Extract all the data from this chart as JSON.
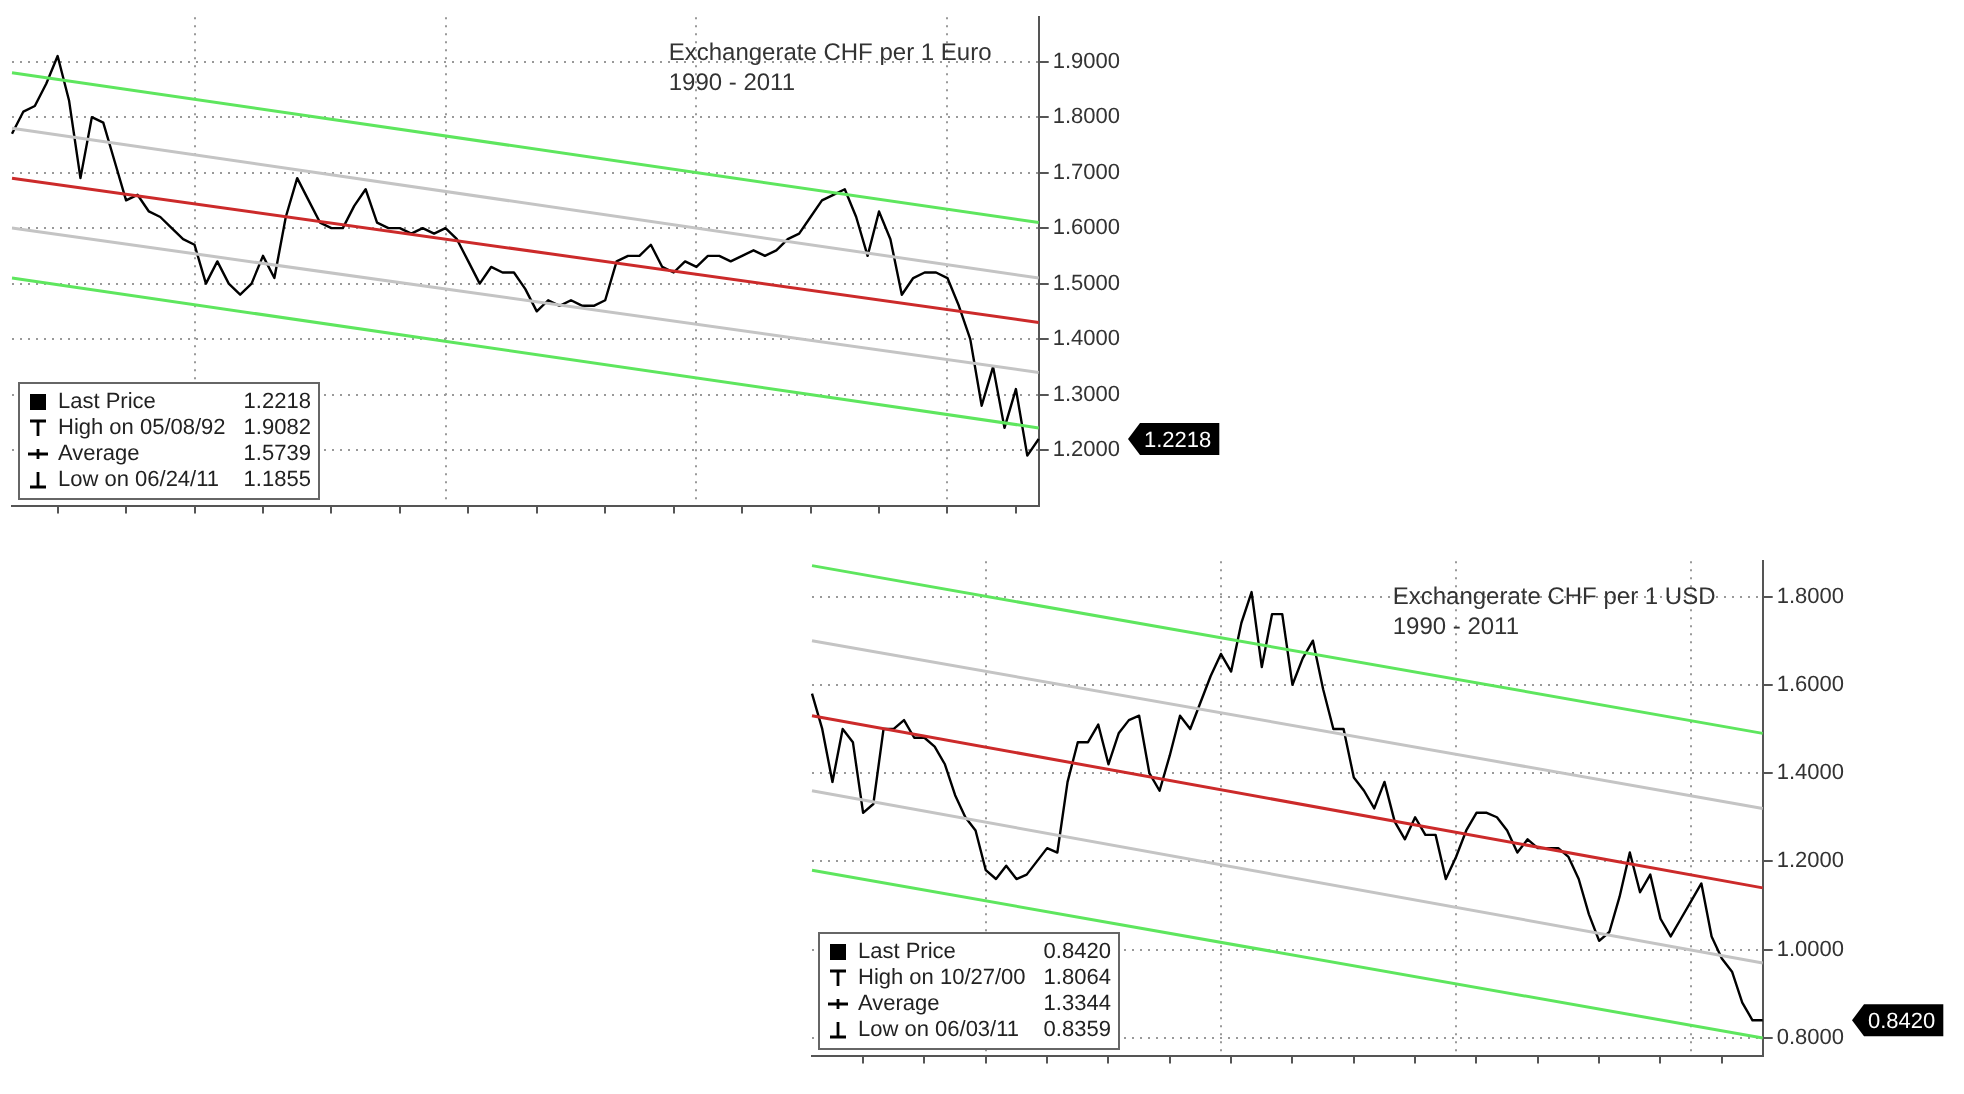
{
  "chart_data": [
    {
      "type": "line",
      "title": "Exchangerate CHF per 1 Euro",
      "subtitle": "1990 - 2011",
      "categories": [
        null,
        null,
        null,
        null,
        null,
        null,
        null,
        null,
        null,
        null,
        null,
        null,
        null,
        null,
        null,
        null,
        null,
        null,
        null,
        null,
        null,
        null,
        null,
        null,
        null,
        null,
        null,
        null,
        null,
        null,
        null,
        null,
        null,
        null,
        null,
        null,
        null,
        null,
        null,
        null,
        null,
        null,
        null,
        null,
        null,
        null,
        null,
        null,
        null,
        null,
        null,
        null,
        null,
        null,
        null,
        null,
        null,
        null,
        null,
        null,
        null,
        null,
        null,
        null,
        null,
        null,
        null,
        null,
        null,
        null,
        null,
        null,
        null,
        null,
        null,
        null,
        null,
        null,
        null,
        null,
        null,
        null,
        null,
        null,
        null,
        null,
        null,
        null,
        null,
        null,
        null
      ],
      "series": [
        {
          "type": "line",
          "color": "#000000",
          "values": [
            1.77,
            1.81,
            1.82,
            1.86,
            1.91,
            1.83,
            1.69,
            1.8,
            1.79,
            1.72,
            1.65,
            1.66,
            1.63,
            1.62,
            1.6,
            1.58,
            1.57,
            1.5,
            1.54,
            1.5,
            1.48,
            1.5,
            1.55,
            1.51,
            1.62,
            1.69,
            1.65,
            1.61,
            1.6,
            1.6,
            1.64,
            1.67,
            1.61,
            1.6,
            1.6,
            1.59,
            1.6,
            1.59,
            1.6,
            1.58,
            1.54,
            1.5,
            1.53,
            1.52,
            1.52,
            1.49,
            1.45,
            1.47,
            1.46,
            1.47,
            1.46,
            1.46,
            1.47,
            1.54,
            1.55,
            1.55,
            1.57,
            1.53,
            1.52,
            1.54,
            1.53,
            1.55,
            1.55,
            1.54,
            1.55,
            1.56,
            1.55,
            1.56,
            1.58,
            1.59,
            1.62,
            1.65,
            1.66,
            1.67,
            1.62,
            1.55,
            1.63,
            1.58,
            1.48,
            1.51,
            1.52,
            1.52,
            1.51,
            1.46,
            1.4,
            1.28,
            1.35,
            1.24,
            1.31,
            1.19,
            1.22
          ]
        },
        {
          "type": "line",
          "color": "#5ee65e",
          "values": [
            1.88,
            null,
            null,
            null,
            null,
            null,
            null,
            null,
            null,
            null,
            null,
            null,
            null,
            null,
            null,
            null,
            null,
            null,
            null,
            null,
            null,
            null,
            null,
            null,
            null,
            null,
            null,
            null,
            null,
            null,
            null,
            null,
            null,
            null,
            null,
            null,
            null,
            null,
            null,
            null,
            null,
            null,
            null,
            null,
            null,
            null,
            null,
            null,
            null,
            null,
            null,
            null,
            null,
            null,
            null,
            null,
            null,
            null,
            null,
            null,
            null,
            null,
            null,
            null,
            null,
            null,
            null,
            null,
            null,
            null,
            null,
            null,
            null,
            null,
            null,
            null,
            null,
            null,
            null,
            null,
            null,
            null,
            null,
            null,
            null,
            null,
            null,
            null,
            null,
            null,
            1.61
          ]
        },
        {
          "type": "line",
          "color": "#c4c4c4",
          "values": [
            1.78,
            null,
            null,
            null,
            null,
            null,
            null,
            null,
            null,
            null,
            null,
            null,
            null,
            null,
            null,
            null,
            null,
            null,
            null,
            null,
            null,
            null,
            null,
            null,
            null,
            null,
            null,
            null,
            null,
            null,
            null,
            null,
            null,
            null,
            null,
            null,
            null,
            null,
            null,
            null,
            null,
            null,
            null,
            null,
            null,
            null,
            null,
            null,
            null,
            null,
            null,
            null,
            null,
            null,
            null,
            null,
            null,
            null,
            null,
            null,
            null,
            null,
            null,
            null,
            null,
            null,
            null,
            null,
            null,
            null,
            null,
            null,
            null,
            null,
            null,
            null,
            null,
            null,
            null,
            null,
            null,
            null,
            null,
            null,
            null,
            null,
            null,
            null,
            null,
            null,
            1.51
          ]
        },
        {
          "type": "line",
          "color": "#cc2a2a",
          "values": [
            1.69,
            null,
            null,
            null,
            null,
            null,
            null,
            null,
            null,
            null,
            null,
            null,
            null,
            null,
            null,
            null,
            null,
            null,
            null,
            null,
            null,
            null,
            null,
            null,
            null,
            null,
            null,
            null,
            null,
            null,
            null,
            null,
            null,
            null,
            null,
            null,
            null,
            null,
            null,
            null,
            null,
            null,
            null,
            null,
            null,
            null,
            null,
            null,
            null,
            null,
            null,
            null,
            null,
            null,
            null,
            null,
            null,
            null,
            null,
            null,
            null,
            null,
            null,
            null,
            null,
            null,
            null,
            null,
            null,
            null,
            null,
            null,
            null,
            null,
            null,
            null,
            null,
            null,
            null,
            null,
            null,
            null,
            null,
            null,
            null,
            null,
            null,
            null,
            null,
            null,
            1.43
          ]
        },
        {
          "type": "line",
          "color": "#c4c4c4",
          "values": [
            1.6,
            null,
            null,
            null,
            null,
            null,
            null,
            null,
            null,
            null,
            null,
            null,
            null,
            null,
            null,
            null,
            null,
            null,
            null,
            null,
            null,
            null,
            null,
            null,
            null,
            null,
            null,
            null,
            null,
            null,
            null,
            null,
            null,
            null,
            null,
            null,
            null,
            null,
            null,
            null,
            null,
            null,
            null,
            null,
            null,
            null,
            null,
            null,
            null,
            null,
            null,
            null,
            null,
            null,
            null,
            null,
            null,
            null,
            null,
            null,
            null,
            null,
            null,
            null,
            null,
            null,
            null,
            null,
            null,
            null,
            null,
            null,
            null,
            null,
            null,
            null,
            null,
            null,
            null,
            null,
            null,
            null,
            null,
            null,
            null,
            null,
            null,
            null,
            null,
            null,
            1.34
          ]
        },
        {
          "type": "line",
          "color": "#5ee65e",
          "values": [
            1.51,
            null,
            null,
            null,
            null,
            null,
            null,
            null,
            null,
            null,
            null,
            null,
            null,
            null,
            null,
            null,
            null,
            null,
            null,
            null,
            null,
            null,
            null,
            null,
            null,
            null,
            null,
            null,
            null,
            null,
            null,
            null,
            null,
            null,
            null,
            null,
            null,
            null,
            null,
            null,
            null,
            null,
            null,
            null,
            null,
            null,
            null,
            null,
            null,
            null,
            null,
            null,
            null,
            null,
            null,
            null,
            null,
            null,
            null,
            null,
            null,
            null,
            null,
            null,
            null,
            null,
            null,
            null,
            null,
            null,
            null,
            null,
            null,
            null,
            null,
            null,
            null,
            null,
            null,
            null,
            null,
            null,
            null,
            null,
            null,
            null,
            null,
            null,
            null,
            null,
            1.24
          ]
        }
      ],
      "ylim": [
        1.1,
        1.98
      ],
      "yticks": [
        {
          "value": 1.2,
          "label": "1.2000"
        },
        {
          "value": 1.3,
          "label": "1.3000"
        },
        {
          "value": 1.4,
          "label": "1.4000"
        },
        {
          "value": 1.5,
          "label": "1.5000"
        },
        {
          "value": 1.6,
          "label": "1.6000"
        },
        {
          "value": 1.7,
          "label": "1.7000"
        },
        {
          "value": 1.8,
          "label": "1.8000"
        },
        {
          "value": 1.9,
          "label": "1.9000"
        }
      ],
      "grid": true,
      "tick_labels": "y",
      "marker": "none",
      "line_style": "solid",
      "annotations": [
        "Last Price",
        "1.2218",
        "High on 05/08/92",
        "1.9082",
        "Average",
        "1.5739",
        "Low on 06/24/11",
        "1.1855",
        "1.2218"
      ]
    },
    {
      "type": "line",
      "title": "Exchangerate CHF per 1 USD",
      "subtitle": "1990 - 2011",
      "categories": [
        null,
        null,
        null,
        null,
        null,
        null,
        null,
        null,
        null,
        null,
        null,
        null,
        null,
        null,
        null,
        null,
        null,
        null,
        null,
        null,
        null,
        null,
        null,
        null,
        null,
        null,
        null,
        null,
        null,
        null,
        null,
        null,
        null,
        null,
        null,
        null,
        null,
        null,
        null,
        null,
        null,
        null,
        null,
        null,
        null,
        null,
        null,
        null,
        null,
        null,
        null,
        null,
        null,
        null,
        null,
        null,
        null,
        null,
        null,
        null,
        null,
        null,
        null,
        null,
        null,
        null,
        null,
        null,
        null,
        null,
        null,
        null,
        null,
        null,
        null,
        null,
        null,
        null,
        null,
        null,
        null,
        null,
        null,
        null,
        null,
        null,
        null,
        null,
        null,
        null,
        null,
        null,
        null,
        null
      ],
      "series": [
        {
          "type": "line",
          "color": "#000000",
          "values": [
            1.58,
            1.5,
            1.38,
            1.5,
            1.47,
            1.31,
            1.33,
            1.5,
            1.5,
            1.52,
            1.48,
            1.48,
            1.46,
            1.42,
            1.35,
            1.3,
            1.27,
            1.18,
            1.16,
            1.19,
            1.16,
            1.17,
            1.2,
            1.23,
            1.22,
            1.38,
            1.47,
            1.47,
            1.51,
            1.42,
            1.49,
            1.52,
            1.53,
            1.4,
            1.36,
            1.44,
            1.53,
            1.5,
            1.56,
            1.62,
            1.67,
            1.63,
            1.74,
            1.81,
            1.64,
            1.76,
            1.76,
            1.6,
            1.66,
            1.7,
            1.59,
            1.5,
            1.5,
            1.39,
            1.36,
            1.32,
            1.38,
            1.29,
            1.25,
            1.3,
            1.26,
            1.26,
            1.16,
            1.21,
            1.27,
            1.31,
            1.31,
            1.3,
            1.27,
            1.22,
            1.25,
            1.23,
            1.23,
            1.23,
            1.21,
            1.16,
            1.08,
            1.02,
            1.04,
            1.12,
            1.22,
            1.13,
            1.17,
            1.07,
            1.03,
            1.07,
            1.11,
            1.15,
            1.03,
            0.98,
            0.95,
            0.88,
            0.84,
            0.84
          ]
        },
        {
          "type": "line",
          "color": "#5ee65e",
          "values": [
            1.87,
            null,
            null,
            null,
            null,
            null,
            null,
            null,
            null,
            null,
            null,
            null,
            null,
            null,
            null,
            null,
            null,
            null,
            null,
            null,
            null,
            null,
            null,
            null,
            null,
            null,
            null,
            null,
            null,
            null,
            null,
            null,
            null,
            null,
            null,
            null,
            null,
            null,
            null,
            null,
            null,
            null,
            null,
            null,
            null,
            null,
            null,
            null,
            null,
            null,
            null,
            null,
            null,
            null,
            null,
            null,
            null,
            null,
            null,
            null,
            null,
            null,
            null,
            null,
            null,
            null,
            null,
            null,
            null,
            null,
            null,
            null,
            null,
            null,
            null,
            null,
            null,
            null,
            null,
            null,
            null,
            null,
            null,
            null,
            null,
            null,
            null,
            null,
            null,
            null,
            null,
            null,
            null,
            1.49
          ]
        },
        {
          "type": "line",
          "color": "#c4c4c4",
          "values": [
            1.7,
            null,
            null,
            null,
            null,
            null,
            null,
            null,
            null,
            null,
            null,
            null,
            null,
            null,
            null,
            null,
            null,
            null,
            null,
            null,
            null,
            null,
            null,
            null,
            null,
            null,
            null,
            null,
            null,
            null,
            null,
            null,
            null,
            null,
            null,
            null,
            null,
            null,
            null,
            null,
            null,
            null,
            null,
            null,
            null,
            null,
            null,
            null,
            null,
            null,
            null,
            null,
            null,
            null,
            null,
            null,
            null,
            null,
            null,
            null,
            null,
            null,
            null,
            null,
            null,
            null,
            null,
            null,
            null,
            null,
            null,
            null,
            null,
            null,
            null,
            null,
            null,
            null,
            null,
            null,
            null,
            null,
            null,
            null,
            null,
            null,
            null,
            null,
            null,
            null,
            null,
            null,
            null,
            1.32
          ]
        },
        {
          "type": "line",
          "color": "#cc2a2a",
          "values": [
            1.53,
            null,
            null,
            null,
            null,
            null,
            null,
            null,
            null,
            null,
            null,
            null,
            null,
            null,
            null,
            null,
            null,
            null,
            null,
            null,
            null,
            null,
            null,
            null,
            null,
            null,
            null,
            null,
            null,
            null,
            null,
            null,
            null,
            null,
            null,
            null,
            null,
            null,
            null,
            null,
            null,
            null,
            null,
            null,
            null,
            null,
            null,
            null,
            null,
            null,
            null,
            null,
            null,
            null,
            null,
            null,
            null,
            null,
            null,
            null,
            null,
            null,
            null,
            null,
            null,
            null,
            null,
            null,
            null,
            null,
            null,
            null,
            null,
            null,
            null,
            null,
            null,
            null,
            null,
            null,
            null,
            null,
            null,
            null,
            null,
            null,
            null,
            null,
            null,
            null,
            null,
            null,
            null,
            1.14
          ]
        },
        {
          "type": "line",
          "color": "#c4c4c4",
          "values": [
            1.36,
            null,
            null,
            null,
            null,
            null,
            null,
            null,
            null,
            null,
            null,
            null,
            null,
            null,
            null,
            null,
            null,
            null,
            null,
            null,
            null,
            null,
            null,
            null,
            null,
            null,
            null,
            null,
            null,
            null,
            null,
            null,
            null,
            null,
            null,
            null,
            null,
            null,
            null,
            null,
            null,
            null,
            null,
            null,
            null,
            null,
            null,
            null,
            null,
            null,
            null,
            null,
            null,
            null,
            null,
            null,
            null,
            null,
            null,
            null,
            null,
            null,
            null,
            null,
            null,
            null,
            null,
            null,
            null,
            null,
            null,
            null,
            null,
            null,
            null,
            null,
            null,
            null,
            null,
            null,
            null,
            null,
            null,
            null,
            null,
            null,
            null,
            null,
            null,
            null,
            null,
            null,
            null,
            0.97
          ]
        },
        {
          "type": "line",
          "color": "#5ee65e",
          "values": [
            1.18,
            null,
            null,
            null,
            null,
            null,
            null,
            null,
            null,
            null,
            null,
            null,
            null,
            null,
            null,
            null,
            null,
            null,
            null,
            null,
            null,
            null,
            null,
            null,
            null,
            null,
            null,
            null,
            null,
            null,
            null,
            null,
            null,
            null,
            null,
            null,
            null,
            null,
            null,
            null,
            null,
            null,
            null,
            null,
            null,
            null,
            null,
            null,
            null,
            null,
            null,
            null,
            null,
            null,
            null,
            null,
            null,
            null,
            null,
            null,
            null,
            null,
            null,
            null,
            null,
            null,
            null,
            null,
            null,
            null,
            null,
            null,
            null,
            null,
            null,
            null,
            null,
            null,
            null,
            null,
            null,
            null,
            null,
            null,
            null,
            null,
            null,
            null,
            null,
            null,
            null,
            null,
            null,
            0.8
          ]
        }
      ],
      "ylim": [
        0.76,
        1.88
      ],
      "yticks": [
        {
          "value": 0.8,
          "label": "0.8000"
        },
        {
          "value": 1.0,
          "label": "1.0000"
        },
        {
          "value": 1.2,
          "label": "1.2000"
        },
        {
          "value": 1.4,
          "label": "1.4000"
        },
        {
          "value": 1.6,
          "label": "1.6000"
        },
        {
          "value": 1.8,
          "label": "1.8000"
        }
      ],
      "grid": true,
      "tick_labels": "y",
      "marker": "none",
      "line_style": "solid",
      "annotations": [
        "Last Price",
        "0.8420",
        "High on 10/27/00",
        "1.8064",
        "Average",
        "1.3344",
        "Low on 06/03/11",
        "0.8359",
        "0.8420"
      ]
    }
  ]
}
